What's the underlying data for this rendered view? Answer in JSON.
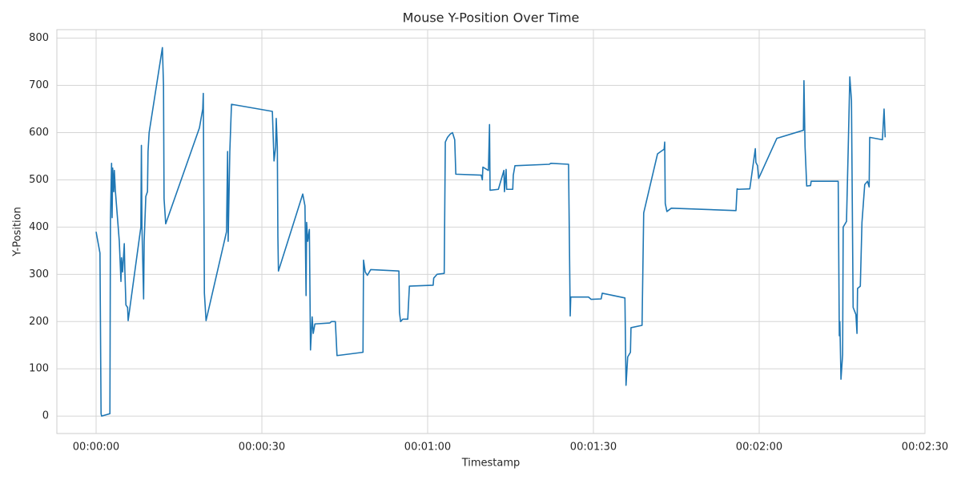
{
  "chart_data": {
    "type": "line",
    "title": "Mouse Y-Position Over Time",
    "xlabel": "Timestamp",
    "ylabel": "Y-Position",
    "xlim": [
      -7.1,
      150
    ],
    "ylim": [
      -37,
      818
    ],
    "xticks": [
      {
        "value": 0,
        "label": "00:00:00"
      },
      {
        "value": 30,
        "label": "00:00:30"
      },
      {
        "value": 60,
        "label": "00:01:00"
      },
      {
        "value": 90,
        "label": "00:01:30"
      },
      {
        "value": 120,
        "label": "00:02:00"
      },
      {
        "value": 150,
        "label": "00:02:30"
      }
    ],
    "yticks": [
      0,
      100,
      200,
      300,
      400,
      500,
      600,
      700,
      800
    ],
    "grid": true,
    "series": [
      {
        "color": "#1f77b4",
        "x": [
          0,
          0.7,
          0.9,
          1.0,
          2.5,
          2.6,
          2.8,
          2.9,
          3.0,
          3.2,
          3.3,
          3.5,
          4.2,
          4.5,
          4.6,
          4.8,
          5.1,
          5.2,
          5.4,
          5.7,
          5.8,
          8.1,
          8.2,
          8.3,
          8.6,
          8.7,
          9.0,
          9.3,
          9.4,
          9.6,
          12.0,
          12.2,
          12.3,
          12.6,
          18.7,
          19.3,
          19.4,
          19.6,
          19.9,
          23.6,
          23.8,
          23.9,
          24.2,
          24.5,
          31.9,
          32.2,
          32.5,
          32.6,
          32.8,
          32.9,
          33.0,
          37.4,
          37.8,
          38.0,
          38.1,
          38.3,
          38.6,
          38.8,
          39.1,
          39.3,
          39.6,
          42.3,
          42.6,
          43.3,
          43.6,
          48.3,
          48.4,
          48.7,
          49.1,
          49.7,
          54.8,
          54.9,
          55.1,
          55.5,
          56.4,
          56.7,
          61.0,
          61.1,
          61.7,
          63.0,
          63.2,
          63.6,
          64.1,
          64.5,
          64.9,
          65.1,
          69.7,
          69.9,
          70.0,
          71.0,
          71.2,
          71.3,
          72.8,
          73.8,
          73.9,
          74.2,
          74.3,
          75.4,
          75.5,
          75.8,
          82.0,
          82.3,
          85.5,
          85.8,
          85.9,
          89.1,
          89.6,
          91.4,
          91.6,
          95.7,
          95.9,
          96.2,
          96.7,
          96.8,
          98.8,
          99.1,
          101.6,
          102.8,
          102.9,
          103.0,
          103.3,
          104.1,
          115.8,
          116.0,
          116.2,
          118.3,
          119.3,
          119.4,
          119.7,
          119.9,
          123.2,
          128.0,
          128.1,
          128.3,
          128.6,
          129.3,
          129.4,
          134.3,
          134.5,
          134.6,
          134.8,
          135.1,
          135.2,
          135.8,
          136.1,
          136.4,
          136.7,
          137.0,
          137.5,
          137.7,
          137.8,
          138.3,
          138.6,
          139.1,
          139.6,
          139.9,
          140.0,
          142.3,
          142.6,
          142.8
        ],
        "values": [
          390,
          345,
          5,
          0,
          5,
          420,
          535,
          420,
          525,
          475,
          520,
          475,
          370,
          285,
          335,
          305,
          365,
          310,
          235,
          230,
          202,
          400,
          573,
          400,
          248,
          370,
          465,
          475,
          560,
          600,
          780,
          700,
          460,
          407,
          610,
          650,
          683,
          260,
          202,
          390,
          560,
          370,
          560,
          660,
          645,
          540,
          570,
          630,
          570,
          380,
          307,
          470,
          445,
          255,
          410,
          370,
          395,
          140,
          210,
          175,
          195,
          197,
          200,
          200,
          128,
          135,
          330,
          305,
          298,
          310,
          307,
          220,
          200,
          205,
          205,
          275,
          277,
          292,
          300,
          302,
          580,
          590,
          597,
          600,
          585,
          512,
          510,
          500,
          527,
          520,
          617,
          478,
          480,
          520,
          475,
          522,
          480,
          480,
          510,
          530,
          533,
          535,
          533,
          212,
          252,
          252,
          247,
          248,
          260,
          250,
          65,
          125,
          135,
          187,
          192,
          430,
          555,
          565,
          580,
          450,
          433,
          440,
          435,
          481,
          480,
          481,
          566,
          537,
          530,
          503,
          588,
          605,
          710,
          570,
          487,
          488,
          497,
          497,
          170,
          200,
          78,
          130,
          400,
          412,
          560,
          718,
          668,
          230,
          215,
          175,
          270,
          275,
          410,
          490,
          497,
          485,
          590,
          585,
          650,
          590
        ]
      }
    ]
  }
}
